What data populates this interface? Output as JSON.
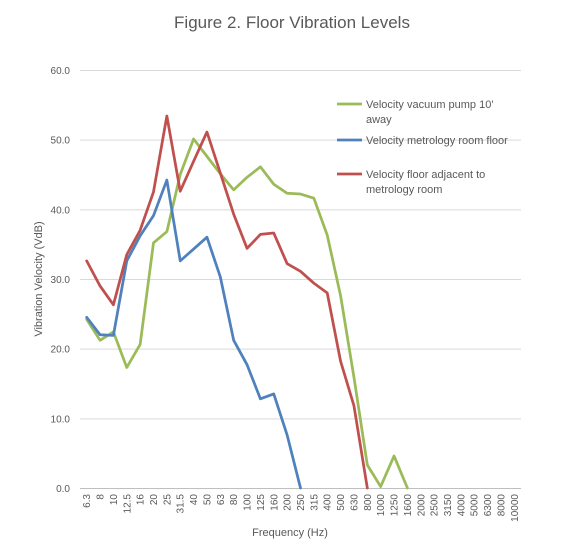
{
  "chart_data": {
    "type": "line",
    "title": "Figure 2.  Floor Vibration Levels",
    "xlabel": "Frequency  (Hz)",
    "ylabel": "Vibration Velocity (VdB)",
    "ylim": [
      0,
      60
    ],
    "ytick_labels": [
      "0.0",
      "10.0",
      "20.0",
      "30.0",
      "40.0",
      "50.0",
      "60.0"
    ],
    "grid": "horizontal",
    "legend_position": "top-right",
    "categories": [
      "6.3",
      "8",
      "10",
      "12.5",
      "16",
      "20",
      "25",
      "31.5",
      "40",
      "50",
      "63",
      "80",
      "100",
      "125",
      "160",
      "200",
      "250",
      "315",
      "400",
      "500",
      "630",
      "800",
      "1000",
      "1250",
      "1600",
      "2000",
      "2500",
      "3150",
      "4000",
      "5000",
      "6300",
      "8000",
      "10000"
    ],
    "series": [
      {
        "name": "Velocity vacuum pump 10' away",
        "color": "#9BBB59",
        "values": [
          24.2,
          21.2,
          22.4,
          17.3,
          20.6,
          35.2,
          36.8,
          45.0,
          50.1,
          47.6,
          45.1,
          42.8,
          44.6,
          46.1,
          43.6,
          42.3,
          42.2,
          41.6,
          36.3,
          27.6,
          15.9,
          3.3,
          0.2,
          4.6,
          0.0,
          null,
          null,
          null,
          null,
          null,
          null,
          null,
          null
        ]
      },
      {
        "name": "Velocity metrology room floor",
        "color": "#4F81BD",
        "values": [
          24.5,
          22.0,
          21.9,
          32.6,
          36.2,
          39.1,
          44.2,
          32.6,
          34.3,
          36.0,
          30.3,
          21.2,
          17.7,
          12.8,
          13.5,
          7.6,
          0.0,
          null,
          null,
          null,
          null,
          null,
          null,
          null,
          null,
          null,
          null,
          null,
          null,
          null,
          null,
          null,
          null
        ]
      },
      {
        "name": "Velocity floor adjacent to metrology room",
        "color": "#C0504D",
        "values": [
          32.6,
          29.0,
          26.3,
          33.5,
          37.0,
          42.5,
          53.4,
          42.6,
          46.9,
          51.1,
          45.2,
          39.3,
          34.4,
          36.4,
          36.6,
          32.2,
          31.1,
          29.4,
          28.0,
          18.2,
          11.8,
          0.0,
          null,
          null,
          null,
          null,
          null,
          null,
          null,
          null,
          null,
          null,
          null
        ]
      }
    ]
  },
  "legend": {
    "items": [
      {
        "lines": [
          "Velocity vacuum pump 10'",
          "away"
        ]
      },
      {
        "lines": [
          "Velocity metrology room floor"
        ]
      },
      {
        "lines": [
          "Velocity floor adjacent to",
          "metrology room"
        ]
      }
    ]
  }
}
